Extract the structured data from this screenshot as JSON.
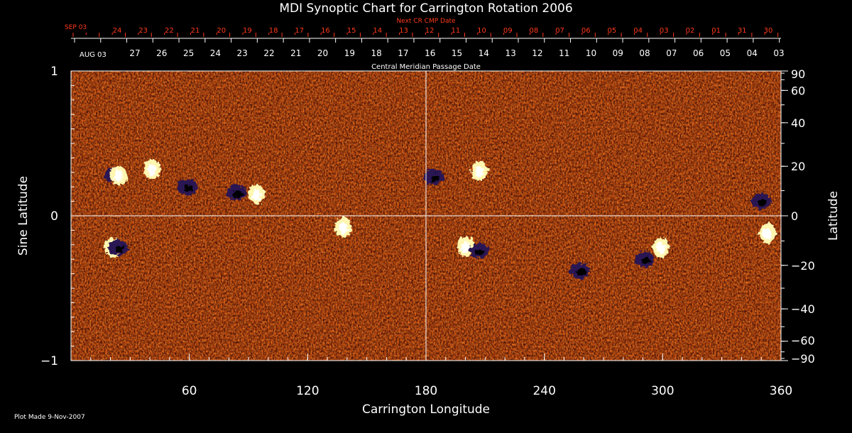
{
  "chart_data": {
    "type": "heatmap",
    "title": "MDI Synoptic Chart for Carrington Rotation 2006",
    "xlabel": "Carrington Longitude",
    "ylabel_left": "Sine Latitude",
    "ylabel_right": "Latitude",
    "xlim": [
      0,
      360
    ],
    "ylim": [
      -1,
      1
    ],
    "x_ticks": [
      60,
      120,
      180,
      240,
      300,
      360
    ],
    "y_ticks_left": [
      {
        "value": 1,
        "label": "1"
      },
      {
        "value": 0,
        "label": "0"
      },
      {
        "value": -1,
        "label": "−1"
      }
    ],
    "y_ticks_right": [
      {
        "deg": 90,
        "label": "90"
      },
      {
        "deg": 60,
        "label": "60"
      },
      {
        "deg": 40,
        "label": "40"
      },
      {
        "deg": 20,
        "label": "20"
      },
      {
        "deg": 0,
        "label": "0"
      },
      {
        "deg": -20,
        "label": "−20"
      },
      {
        "deg": -40,
        "label": "−40"
      },
      {
        "deg": -60,
        "label": "−60"
      },
      {
        "deg": -90,
        "label": "−90"
      }
    ],
    "cmp_axis": {
      "label": "Central Meridian Passage Date",
      "first_label": "AUG 03",
      "day_labels": [
        "27",
        "26",
        "25",
        "24",
        "23",
        "22",
        "21",
        "20",
        "19",
        "18",
        "17",
        "16",
        "15",
        "14",
        "13",
        "12",
        "11",
        "10",
        "09",
        "08",
        "07",
        "06",
        "05",
        "04",
        "03"
      ]
    },
    "next_cr_axis": {
      "label": "Next CR CMP Date",
      "first_label": "SEP 03",
      "day_labels": [
        "24",
        "23",
        "22",
        "21",
        "20",
        "19",
        "18",
        "17",
        "16",
        "15",
        "14",
        "13",
        "12",
        "11",
        "10",
        "09",
        "08",
        "07",
        "06",
        "05",
        "04",
        "03",
        "02",
        "01",
        "31",
        "30"
      ]
    },
    "active_regions": [
      {
        "lon": 23,
        "sinlat": 0.28,
        "polarity": "mixed"
      },
      {
        "lon": 40,
        "sinlat": 0.32,
        "polarity": "positive"
      },
      {
        "lon": 60,
        "sinlat": 0.2,
        "polarity": "negative"
      },
      {
        "lon": 85,
        "sinlat": 0.16,
        "polarity": "negative"
      },
      {
        "lon": 93,
        "sinlat": 0.15,
        "polarity": "positive"
      },
      {
        "lon": 20,
        "sinlat": -0.22,
        "polarity": "positive"
      },
      {
        "lon": 25,
        "sinlat": -0.22,
        "polarity": "negative"
      },
      {
        "lon": 137,
        "sinlat": -0.08,
        "polarity": "positive"
      },
      {
        "lon": 185,
        "sinlat": 0.27,
        "polarity": "negative"
      },
      {
        "lon": 206,
        "sinlat": 0.31,
        "polarity": "positive"
      },
      {
        "lon": 199,
        "sinlat": -0.21,
        "polarity": "positive"
      },
      {
        "lon": 208,
        "sinlat": -0.24,
        "polarity": "negative"
      },
      {
        "lon": 259,
        "sinlat": -0.38,
        "polarity": "negative"
      },
      {
        "lon": 292,
        "sinlat": -0.3,
        "polarity": "negative"
      },
      {
        "lon": 298,
        "sinlat": -0.22,
        "polarity": "positive"
      },
      {
        "lon": 351,
        "sinlat": 0.1,
        "polarity": "negative"
      },
      {
        "lon": 352,
        "sinlat": -0.12,
        "polarity": "positive"
      }
    ],
    "colors": {
      "background": "#d95a12",
      "positive": "#fff6b0",
      "negative": "#2a1552"
    }
  },
  "footer": {
    "plot_made": "Plot Made  9-Nov-2007"
  }
}
